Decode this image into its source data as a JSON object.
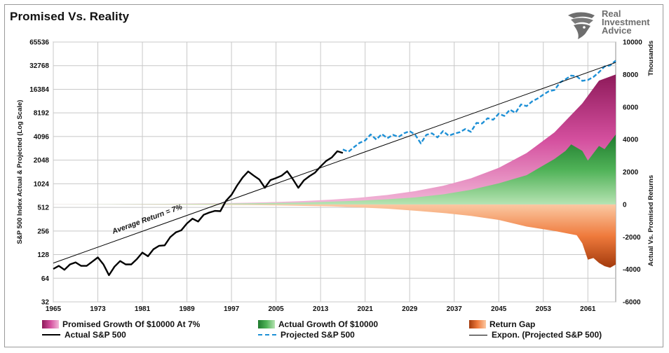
{
  "title": "Promised Vs. Reality",
  "brand": {
    "line1": "Real",
    "line2": "Investment",
    "line3": "Advice",
    "logo_icon": "eagle-head-icon",
    "color": "#6e6e6e"
  },
  "chart_data": {
    "type": "line",
    "title": "Promised Vs. Reality",
    "left_axis": {
      "label": "S&P 500 Index Actual & Projected (Log Scale)",
      "scale": "log2",
      "ticks": [
        32,
        64,
        128,
        256,
        512,
        1024,
        2048,
        4096,
        8192,
        16384,
        32768,
        65536
      ],
      "range": [
        32,
        65536
      ]
    },
    "right_axis": {
      "label": "Actual Vs. Promised Returns",
      "unit_label": "Thousands",
      "ticks": [
        -6000,
        -4000,
        -2000,
        0,
        2000,
        4000,
        6000,
        8000,
        10000
      ],
      "range": [
        -6000,
        10000
      ]
    },
    "x_axis": {
      "ticks": [
        1965,
        1973,
        1981,
        1989,
        1997,
        2005,
        2013,
        2021,
        2029,
        2037,
        2045,
        2053,
        2061
      ],
      "range": [
        1965,
        2066
      ]
    },
    "grid": true,
    "legend_position": "bottom",
    "annotation": {
      "text": "Average Return = 7%",
      "x": 1982,
      "y": 340
    },
    "series": [
      {
        "name": "Promised Growth Of $10000 At 7%",
        "axis": "right",
        "kind": "area",
        "colors": [
          "#8e1a5a",
          "#d44f9e",
          "#f2b8d8"
        ],
        "x": [
          1965,
          1975,
          1985,
          1995,
          2000,
          2005,
          2010,
          2015,
          2020,
          2025,
          2030,
          2035,
          2040,
          2045,
          2050,
          2055,
          2060,
          2063,
          2066
        ],
        "y": [
          10,
          20,
          40,
          76,
          107,
          150,
          211,
          296,
          415,
          583,
          817,
          1146,
          1608,
          2254,
          3162,
          4434,
          6220,
          7620,
          8000
        ]
      },
      {
        "name": "Actual Growth Of $10000",
        "axis": "right",
        "kind": "area",
        "colors": [
          "#1f7a2e",
          "#4fb257",
          "#b6e3b2"
        ],
        "x": [
          1965,
          1975,
          1985,
          1995,
          2000,
          2005,
          2010,
          2015,
          2020,
          2025,
          2030,
          2035,
          2040,
          2045,
          2050,
          2055,
          2057,
          2058,
          2060,
          2061,
          2063,
          2064,
          2066
        ],
        "y": [
          8,
          15,
          25,
          50,
          70,
          90,
          120,
          170,
          230,
          320,
          430,
          620,
          900,
          1300,
          1800,
          2800,
          3300,
          3700,
          3300,
          2700,
          3600,
          3400,
          4300
        ]
      },
      {
        "name": "Return Gap",
        "axis": "right",
        "kind": "area",
        "colors": [
          "#a33a0c",
          "#ef7a3c",
          "#fbc9a3"
        ],
        "x": [
          1965,
          1975,
          1985,
          1995,
          2000,
          2005,
          2010,
          2015,
          2020,
          2025,
          2030,
          2035,
          2040,
          2045,
          2050,
          2055,
          2059,
          2060,
          2061,
          2062,
          2063,
          2064,
          2065,
          2066
        ],
        "y": [
          -2,
          -5,
          -15,
          -26,
          -37,
          -60,
          -91,
          -126,
          -185,
          -263,
          -387,
          -526,
          -708,
          -954,
          -1362,
          -1634,
          -1900,
          -2400,
          -3400,
          -3300,
          -3600,
          -3800,
          -3900,
          -3700
        ]
      },
      {
        "name": "Actual S&P 500",
        "axis": "left",
        "kind": "line",
        "color": "#000000",
        "style": "solid",
        "x": [
          1965,
          1966,
          1967,
          1968,
          1969,
          1970,
          1971,
          1972,
          1973,
          1974,
          1975,
          1976,
          1977,
          1978,
          1979,
          1980,
          1981,
          1982,
          1983,
          1984,
          1985,
          1986,
          1987,
          1988,
          1989,
          1990,
          1991,
          1992,
          1993,
          1994,
          1995,
          1996,
          1997,
          1998,
          1999,
          2000,
          2001,
          2002,
          2003,
          2004,
          2005,
          2006,
          2007,
          2008,
          2009,
          2010,
          2011,
          2012,
          2013,
          2014,
          2015,
          2016,
          2017
        ],
        "y": [
          84,
          92,
          82,
          96,
          102,
          92,
          92,
          104,
          118,
          96,
          70,
          90,
          106,
          96,
          96,
          112,
          136,
          122,
          150,
          166,
          168,
          214,
          246,
          262,
          320,
          368,
          338,
          412,
          440,
          462,
          458,
          620,
          740,
          970,
          1230,
          1470,
          1300,
          1160,
          910,
          1140,
          1210,
          1300,
          1480,
          1180,
          910,
          1130,
          1280,
          1420,
          1700,
          2000,
          2210,
          2660,
          2530
        ]
      },
      {
        "name": "Projected S&P 500",
        "axis": "left",
        "kind": "line",
        "color": "#1e90d6",
        "style": "dashed",
        "x": [
          2017,
          2018,
          2019,
          2020,
          2021,
          2022,
          2023,
          2024,
          2025,
          2026,
          2027,
          2028,
          2029,
          2030,
          2031,
          2032,
          2033,
          2034,
          2035,
          2036,
          2037,
          2038,
          2039,
          2040,
          2041,
          2042,
          2043,
          2044,
          2045,
          2046,
          2047,
          2048,
          2049,
          2050,
          2051,
          2052,
          2053,
          2054,
          2055,
          2056,
          2057,
          2058,
          2059,
          2060,
          2061,
          2062,
          2063,
          2064,
          2065,
          2066
        ],
        "y": [
          2800,
          2620,
          3000,
          3400,
          3650,
          4350,
          3750,
          4400,
          3900,
          4300,
          4050,
          4500,
          4800,
          4300,
          3350,
          4300,
          4500,
          4000,
          4800,
          4200,
          4450,
          4650,
          5100,
          4700,
          6100,
          6000,
          7000,
          6700,
          8000,
          7500,
          9000,
          8200,
          10500,
          10000,
          11500,
          12500,
          14000,
          15500,
          16000,
          20000,
          22000,
          24500,
          24000,
          21000,
          21500,
          23500,
          27000,
          32000,
          33000,
          38000
        ]
      },
      {
        "name": "Expon. (Projected S&P 500)",
        "axis": "left",
        "kind": "line",
        "color": "#000000",
        "style": "thin",
        "x": [
          1965,
          2066
        ],
        "y": [
          100,
          36000
        ]
      }
    ]
  },
  "legend": [
    {
      "label": "Promised Growth Of $10000 At 7%"
    },
    {
      "label": "Actual Growth Of $10000"
    },
    {
      "label": "Return Gap"
    },
    {
      "label": "Actual S&P 500"
    },
    {
      "label": "Projected S&P 500"
    },
    {
      "label": "Expon. (Projected S&P 500)"
    }
  ]
}
